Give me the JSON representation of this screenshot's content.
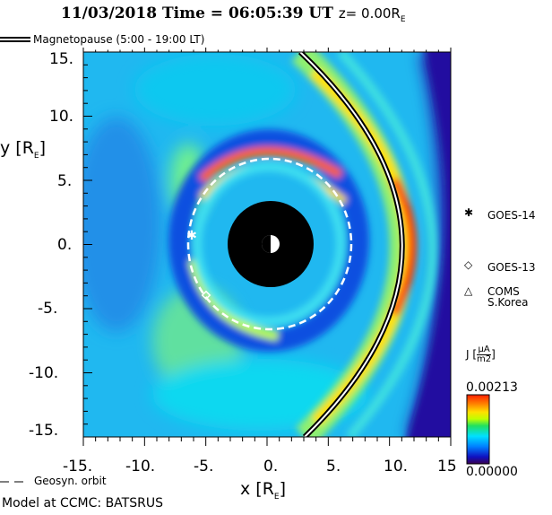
{
  "chart_data": {
    "type": "heatmap",
    "title_date": "11/03/2018",
    "title_time": "Time = 06:05:39 UT",
    "title_z": "z= 0.00R",
    "title_z_sub": "E",
    "xlabel": "x [R",
    "ylabel": "y [R",
    "label_sub": "E",
    "xlim": [
      -15,
      15
    ],
    "ylim": [
      -15,
      15
    ],
    "x_ticks": [
      "-15.",
      "-10.",
      "-5.",
      "0.",
      "5.",
      "10.",
      "15"
    ],
    "y_ticks": [
      "15.",
      "10.",
      "5.",
      "0.",
      "-5.",
      "-10.",
      "-15."
    ],
    "quantity": "J",
    "units_num": "µA",
    "units_den": "m2",
    "colorbar": {
      "min": "0.00000",
      "max": "0.00213",
      "colors": [
        "#3a0050",
        "#1010c0",
        "#0080ff",
        "#00e0ff",
        "#20e060",
        "#c0ff00",
        "#ffe000",
        "#ff8000",
        "#ff2000"
      ]
    },
    "magnetopause_label": "Magnetopause (5:00 - 19:00 LT)",
    "geosyn_label": "Geosyn. orbit",
    "geosyn_radius_re": 6.6,
    "satellites": [
      {
        "name": "GOES-14",
        "marker": "asterisk",
        "x": -6.1,
        "y": 0.7
      },
      {
        "name": "GOES-13",
        "marker": "diamond",
        "x": -5.0,
        "y": -4.0
      },
      {
        "name": "COMS",
        "name2": "S.Korea",
        "marker": "triangle"
      }
    ],
    "footer": "Model at CCMC: BATSRUS"
  }
}
